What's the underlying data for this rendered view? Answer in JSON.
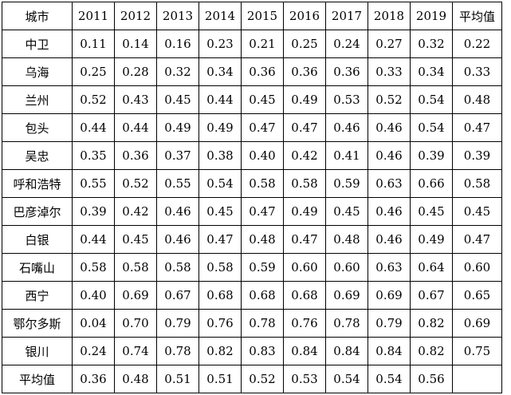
{
  "table": {
    "headers": [
      "城市",
      "2011",
      "2012",
      "2013",
      "2014",
      "2015",
      "2016",
      "2017",
      "2018",
      "2019",
      "平均值"
    ],
    "rows": [
      [
        "中卫",
        "0.11",
        "0.14",
        "0.16",
        "0.23",
        "0.21",
        "0.25",
        "0.24",
        "0.27",
        "0.32",
        "0.22"
      ],
      [
        "乌海",
        "0.25",
        "0.28",
        "0.32",
        "0.34",
        "0.36",
        "0.36",
        "0.36",
        "0.33",
        "0.34",
        "0.33"
      ],
      [
        "兰州",
        "0.52",
        "0.43",
        "0.45",
        "0.44",
        "0.45",
        "0.49",
        "0.53",
        "0.52",
        "0.54",
        "0.48"
      ],
      [
        "包头",
        "0.44",
        "0.44",
        "0.49",
        "0.49",
        "0.47",
        "0.47",
        "0.46",
        "0.46",
        "0.54",
        "0.47"
      ],
      [
        "吴忠",
        "0.35",
        "0.36",
        "0.37",
        "0.38",
        "0.40",
        "0.42",
        "0.41",
        "0.46",
        "0.39",
        "0.39"
      ],
      [
        "呼和浩特",
        "0.55",
        "0.52",
        "0.55",
        "0.54",
        "0.58",
        "0.58",
        "0.59",
        "0.63",
        "0.66",
        "0.58"
      ],
      [
        "巴彦淖尔",
        "0.39",
        "0.42",
        "0.46",
        "0.45",
        "0.47",
        "0.49",
        "0.45",
        "0.46",
        "0.45",
        "0.45"
      ],
      [
        "白银",
        "0.44",
        "0.45",
        "0.46",
        "0.47",
        "0.48",
        "0.47",
        "0.48",
        "0.46",
        "0.49",
        "0.47"
      ],
      [
        "石嘴山",
        "0.58",
        "0.58",
        "0.58",
        "0.58",
        "0.59",
        "0.60",
        "0.60",
        "0.63",
        "0.64",
        "0.60"
      ],
      [
        "西宁",
        "0.40",
        "0.69",
        "0.67",
        "0.68",
        "0.68",
        "0.68",
        "0.69",
        "0.69",
        "0.67",
        "0.65"
      ],
      [
        "鄂尔多斯",
        "0.04",
        "0.70",
        "0.79",
        "0.76",
        "0.78",
        "0.76",
        "0.78",
        "0.79",
        "0.82",
        "0.69"
      ],
      [
        "银川",
        "0.24",
        "0.74",
        "0.78",
        "0.82",
        "0.83",
        "0.84",
        "0.84",
        "0.84",
        "0.82",
        "0.75"
      ],
      [
        "平均值",
        "0.36",
        "0.48",
        "0.51",
        "0.51",
        "0.52",
        "0.53",
        "0.54",
        "0.54",
        "0.56",
        ""
      ]
    ]
  }
}
